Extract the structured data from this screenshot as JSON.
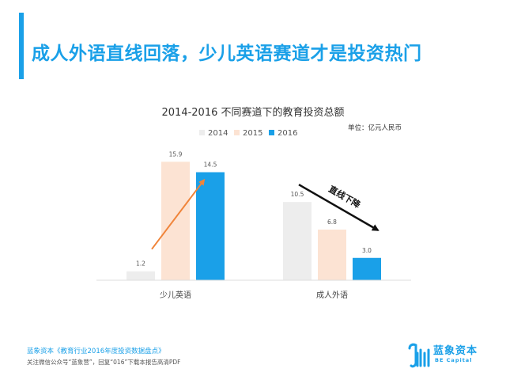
{
  "header": {
    "title": "成人外语直线回落，少儿英语赛道才是投资热门"
  },
  "colors": {
    "accent": "#1aa0e8",
    "series_2014": "#ededed",
    "series_2015": "#fce3d3",
    "series_2016": "#1aa0e8",
    "up_arrow": "#f0843a",
    "down_arrow": "#111111"
  },
  "chart_data": {
    "type": "bar",
    "title": "2014-2016  不同赛道下的教育投资总额",
    "unit_label": "单位：亿元人民币",
    "categories": [
      "少儿英语",
      "成人外语"
    ],
    "series": [
      {
        "name": "2014",
        "values": [
          1.2,
          10.5
        ]
      },
      {
        "name": "2015",
        "values": [
          15.9,
          6.8
        ]
      },
      {
        "name": "2016",
        "values": [
          14.5,
          3.0
        ]
      }
    ],
    "ylim": [
      0,
      17
    ],
    "grid": false,
    "legend": "top",
    "annotations": [
      {
        "type": "arrow",
        "direction": "up",
        "category": "少儿英语",
        "color": "orange"
      },
      {
        "type": "arrow",
        "direction": "down",
        "category": "成人外语",
        "label": "直线下降",
        "color": "black"
      }
    ]
  },
  "footer": {
    "source": "蓝象资本《教育行业2016年度投资数据盘点》",
    "note": "关注微信公众号“蓝象营”，回复“016”下载本报告高清PDF"
  },
  "logo": {
    "name": "蓝象资本",
    "sub": "BE Capital",
    "icon": "elephant-logo-icon"
  }
}
